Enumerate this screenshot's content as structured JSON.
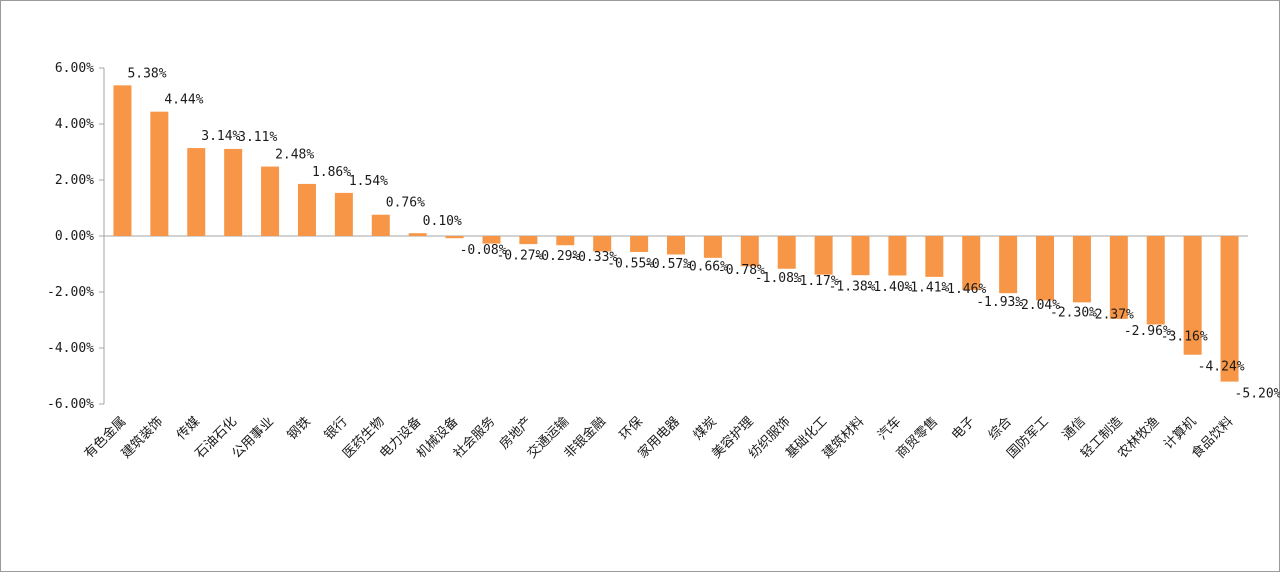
{
  "chart_data": {
    "type": "bar",
    "title": "",
    "xlabel": "",
    "ylabel": "",
    "ylim": [
      -6,
      6
    ],
    "y_ticks": [
      "6.00%",
      "4.00%",
      "2.00%",
      "0.00%",
      "-2.00%",
      "-4.00%",
      "-6.00%"
    ],
    "y_tick_values": [
      6,
      4,
      2,
      0,
      -2,
      -4,
      -6
    ],
    "grid": false,
    "legend": "none",
    "bar_color": "#F79646",
    "categories": [
      "有色金属",
      "建筑装饰",
      "传媒",
      "石油石化",
      "公用事业",
      "钢铁",
      "银行",
      "医药生物",
      "电力设备",
      "机械设备",
      "社会服务",
      "房地产",
      "交通运输",
      "非银金融",
      "环保",
      "家用电器",
      "煤炭",
      "美容护理",
      "纺织服饰",
      "基础化工",
      "建筑材料",
      "汽车",
      "商贸零售",
      "电子",
      "综合",
      "国防军工",
      "通信",
      "轻工制造",
      "农林牧渔",
      "计算机",
      "食品饮料"
    ],
    "values": [
      5.38,
      4.44,
      3.14,
      3.11,
      2.48,
      1.86,
      1.54,
      0.76,
      0.1,
      -0.08,
      -0.27,
      -0.29,
      -0.33,
      -0.55,
      -0.57,
      -0.66,
      -0.78,
      -1.08,
      -1.17,
      -1.38,
      -1.4,
      -1.41,
      -1.46,
      -1.93,
      -2.04,
      -2.3,
      -2.37,
      -2.96,
      -3.16,
      -4.24,
      -5.2
    ],
    "data_labels": [
      "5.38%",
      "4.44%",
      "3.14%",
      "3.11%",
      "2.48%",
      "1.86%",
      "1.54%",
      "0.76%",
      "0.10%",
      "-0.08%",
      "-0.27%",
      "-0.29%",
      "-0.33%",
      "-0.55%",
      "-0.57%",
      "-0.66%",
      "-0.78%",
      "-1.08%",
      "-1.17%",
      "-1.38%",
      "-1.40%",
      "-1.41%",
      "-1.46%",
      "-1.93%",
      "-2.04%",
      "-2.30%",
      "-2.37%",
      "-2.96%",
      "-3.16%",
      "-4.24%",
      "-5.20%"
    ]
  }
}
